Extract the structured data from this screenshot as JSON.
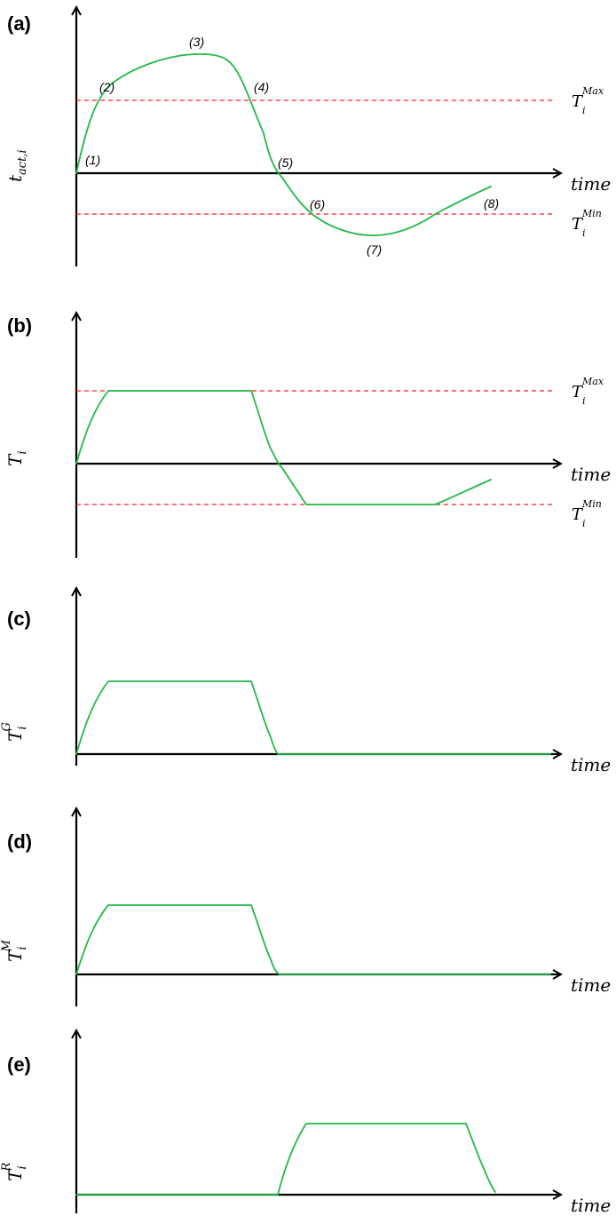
{
  "axis_label_x": "time",
  "threshold_base": "T",
  "threshold_subscript": "i",
  "threshold_max_superscript": "Max",
  "threshold_min_superscript": "Min",
  "colors": {
    "signal": "#22b94a",
    "threshold": "#ff2020",
    "axis": "#000000"
  },
  "panels": [
    {
      "label": "(a)",
      "ylabel": {
        "main": "t",
        "sub": "act,i",
        "sup": ""
      },
      "points": [
        "(1)",
        "(2)",
        "(3)",
        "(4)",
        "(5)",
        "(6)",
        "(7)",
        "(8)"
      ]
    },
    {
      "label": "(b)",
      "ylabel": {
        "main": "T",
        "sub": "i",
        "sup": ""
      }
    },
    {
      "label": "(c)",
      "ylabel": {
        "main": "T",
        "sub": "i",
        "sup": "G"
      }
    },
    {
      "label": "(d)",
      "ylabel": {
        "main": "T",
        "sub": "i",
        "sup": "M"
      }
    },
    {
      "label": "(e)",
      "ylabel": {
        "main": "T",
        "sub": "i",
        "sup": "R"
      }
    }
  ]
}
